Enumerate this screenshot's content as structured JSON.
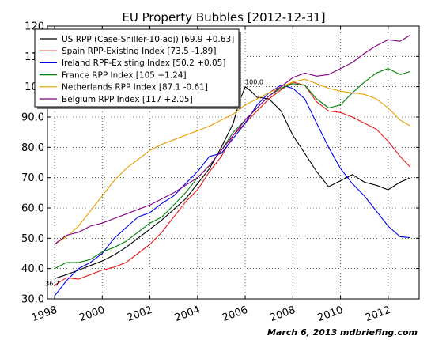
{
  "chart_data": {
    "type": "line",
    "title": "EU Property Bubbles  [2012-12-31]",
    "xlabel": "",
    "ylabel": "",
    "xlim": [
      1997.7,
      2013.3
    ],
    "ylim": [
      30,
      120
    ],
    "yticks": [
      30,
      40,
      50,
      60,
      70,
      80,
      90,
      100,
      110,
      120
    ],
    "ytick_labels": [
      "30.0",
      "40.0",
      "50.0",
      "60.0",
      "70.0",
      "80.0",
      "90.0",
      "100",
      "110",
      "120"
    ],
    "xticks": [
      1998,
      2000,
      2002,
      2004,
      2006,
      2008,
      2010,
      2012
    ],
    "xtick_labels": [
      "1998",
      "2000",
      "2002",
      "2004",
      "2006",
      "2008",
      "2010",
      "2012"
    ],
    "grid": true,
    "legend_position": "top-left",
    "annotations": [
      {
        "text": "100.0",
        "x": 2006.0,
        "y": 100.0
      },
      {
        "text": "36.7",
        "x": 1998.0,
        "y": 36.7
      }
    ],
    "footer": "March 6, 2013  mdbriefing.com",
    "series": [
      {
        "name": "US RPP (Case-Shiller-10-adj) [69.9 +0.63]",
        "color": "#000000",
        "points": [
          [
            1998.0,
            36.7
          ],
          [
            1998.5,
            38.0
          ],
          [
            1999.0,
            39.5
          ],
          [
            1999.5,
            41.0
          ],
          [
            2000.0,
            42.5
          ],
          [
            2000.5,
            44.5
          ],
          [
            2001.0,
            47.0
          ],
          [
            2001.5,
            50.0
          ],
          [
            2002.0,
            53.0
          ],
          [
            2002.5,
            56.0
          ],
          [
            2003.0,
            59.5
          ],
          [
            2003.5,
            63.0
          ],
          [
            2004.0,
            68.0
          ],
          [
            2004.5,
            73.0
          ],
          [
            2005.0,
            80.0
          ],
          [
            2005.5,
            88.0
          ],
          [
            2005.75,
            95.0
          ],
          [
            2006.0,
            100.0
          ],
          [
            2006.25,
            98.5
          ],
          [
            2006.5,
            96.5
          ],
          [
            2007.0,
            96.0
          ],
          [
            2007.5,
            92.0
          ],
          [
            2008.0,
            84.0
          ],
          [
            2008.5,
            78.0
          ],
          [
            2009.0,
            72.0
          ],
          [
            2009.5,
            67.0
          ],
          [
            2010.0,
            69.0
          ],
          [
            2010.5,
            71.0
          ],
          [
            2011.0,
            68.5
          ],
          [
            2011.5,
            67.5
          ],
          [
            2012.0,
            66.0
          ],
          [
            2012.5,
            68.5
          ],
          [
            2012.92,
            69.9
          ]
        ]
      },
      {
        "name": "Spain RPP-Existing Index [73.5 -1.89]",
        "color": "#e41a1c",
        "points": [
          [
            1998.0,
            34.5
          ],
          [
            1998.5,
            37.0
          ],
          [
            1999.0,
            36.5
          ],
          [
            1999.5,
            38.0
          ],
          [
            2000.0,
            39.5
          ],
          [
            2000.5,
            40.5
          ],
          [
            2001.0,
            42.0
          ],
          [
            2001.5,
            45.0
          ],
          [
            2002.0,
            48.0
          ],
          [
            2002.5,
            52.0
          ],
          [
            2003.0,
            57.0
          ],
          [
            2003.5,
            62.0
          ],
          [
            2004.0,
            66.0
          ],
          [
            2004.5,
            72.0
          ],
          [
            2005.0,
            77.0
          ],
          [
            2005.5,
            84.0
          ],
          [
            2006.0,
            88.0
          ],
          [
            2006.5,
            92.0
          ],
          [
            2007.0,
            96.0
          ],
          [
            2007.5,
            99.0
          ],
          [
            2008.0,
            101.5
          ],
          [
            2008.5,
            100.5
          ],
          [
            2009.0,
            95.0
          ],
          [
            2009.5,
            92.0
          ],
          [
            2010.0,
            91.5
          ],
          [
            2010.5,
            90.0
          ],
          [
            2011.0,
            88.0
          ],
          [
            2011.5,
            86.0
          ],
          [
            2012.0,
            82.0
          ],
          [
            2012.5,
            77.0
          ],
          [
            2012.92,
            73.5
          ]
        ]
      },
      {
        "name": "Ireland RPP-Existing Index [50.2 +0.05]",
        "color": "#0000ee",
        "points": [
          [
            1998.0,
            31.0
          ],
          [
            1998.5,
            36.0
          ],
          [
            1999.0,
            40.0
          ],
          [
            1999.5,
            42.0
          ],
          [
            2000.0,
            45.0
          ],
          [
            2000.5,
            50.0
          ],
          [
            2001.0,
            53.5
          ],
          [
            2001.5,
            57.0
          ],
          [
            2002.0,
            58.5
          ],
          [
            2002.5,
            61.5
          ],
          [
            2003.0,
            64.0
          ],
          [
            2003.5,
            68.0
          ],
          [
            2004.0,
            72.0
          ],
          [
            2004.5,
            77.0
          ],
          [
            2005.0,
            78.0
          ],
          [
            2005.5,
            83.0
          ],
          [
            2006.0,
            88.0
          ],
          [
            2006.5,
            94.0
          ],
          [
            2007.0,
            98.0
          ],
          [
            2007.5,
            100.5
          ],
          [
            2008.0,
            99.5
          ],
          [
            2008.5,
            96.0
          ],
          [
            2009.0,
            88.0
          ],
          [
            2009.5,
            80.0
          ],
          [
            2010.0,
            73.0
          ],
          [
            2010.5,
            68.0
          ],
          [
            2011.0,
            64.0
          ],
          [
            2011.5,
            59.0
          ],
          [
            2012.0,
            54.0
          ],
          [
            2012.5,
            50.5
          ],
          [
            2012.92,
            50.2
          ]
        ]
      },
      {
        "name": "France RPP Index [105 +1.24]",
        "color": "#008000",
        "points": [
          [
            1998.0,
            40.0
          ],
          [
            1998.5,
            42.0
          ],
          [
            1999.0,
            42.0
          ],
          [
            1999.5,
            43.0
          ],
          [
            2000.0,
            45.5
          ],
          [
            2000.5,
            47.0
          ],
          [
            2001.0,
            49.0
          ],
          [
            2001.5,
            52.0
          ],
          [
            2002.0,
            55.0
          ],
          [
            2002.5,
            57.0
          ],
          [
            2003.0,
            61.0
          ],
          [
            2003.5,
            65.0
          ],
          [
            2004.0,
            70.0
          ],
          [
            2004.5,
            74.0
          ],
          [
            2005.0,
            79.0
          ],
          [
            2005.5,
            85.0
          ],
          [
            2006.0,
            89.0
          ],
          [
            2006.5,
            93.0
          ],
          [
            2007.0,
            97.0
          ],
          [
            2007.5,
            99.5
          ],
          [
            2008.0,
            101.0
          ],
          [
            2008.5,
            100.5
          ],
          [
            2009.0,
            96.0
          ],
          [
            2009.5,
            93.0
          ],
          [
            2010.0,
            94.0
          ],
          [
            2010.5,
            98.0
          ],
          [
            2011.0,
            101.5
          ],
          [
            2011.5,
            104.5
          ],
          [
            2012.0,
            106.0
          ],
          [
            2012.5,
            104.0
          ],
          [
            2012.92,
            105.0
          ]
        ]
      },
      {
        "name": "Netherlands RPP Index [87.1 -0.61]",
        "color": "#e69f00",
        "points": [
          [
            1998.0,
            48.0
          ],
          [
            1998.5,
            50.5
          ],
          [
            1999.0,
            54.0
          ],
          [
            1999.5,
            59.0
          ],
          [
            2000.0,
            64.0
          ],
          [
            2000.5,
            69.0
          ],
          [
            2001.0,
            73.0
          ],
          [
            2001.5,
            76.0
          ],
          [
            2002.0,
            79.0
          ],
          [
            2002.5,
            81.0
          ],
          [
            2003.0,
            82.5
          ],
          [
            2003.5,
            84.0
          ],
          [
            2004.0,
            85.5
          ],
          [
            2004.5,
            87.0
          ],
          [
            2005.0,
            89.0
          ],
          [
            2005.5,
            91.0
          ],
          [
            2006.0,
            94.0
          ],
          [
            2006.5,
            96.0
          ],
          [
            2007.0,
            98.0
          ],
          [
            2007.5,
            100.0
          ],
          [
            2008.0,
            101.5
          ],
          [
            2008.5,
            102.5
          ],
          [
            2009.0,
            101.0
          ],
          [
            2009.5,
            99.5
          ],
          [
            2010.0,
            98.5
          ],
          [
            2010.5,
            98.0
          ],
          [
            2011.0,
            97.5
          ],
          [
            2011.5,
            96.0
          ],
          [
            2012.0,
            93.0
          ],
          [
            2012.5,
            89.0
          ],
          [
            2012.92,
            87.1
          ]
        ]
      },
      {
        "name": "Belgium RPP Index [117 +2.05]",
        "color": "#800080",
        "points": [
          [
            1998.0,
            48.0
          ],
          [
            1998.5,
            51.0
          ],
          [
            1999.0,
            52.0
          ],
          [
            1999.5,
            54.0
          ],
          [
            2000.0,
            55.0
          ],
          [
            2000.5,
            56.5
          ],
          [
            2001.0,
            58.0
          ],
          [
            2001.5,
            59.5
          ],
          [
            2002.0,
            61.0
          ],
          [
            2002.5,
            63.0
          ],
          [
            2003.0,
            65.0
          ],
          [
            2003.5,
            67.5
          ],
          [
            2004.0,
            70.0
          ],
          [
            2004.5,
            74.0
          ],
          [
            2005.0,
            79.0
          ],
          [
            2005.5,
            84.0
          ],
          [
            2006.0,
            89.0
          ],
          [
            2006.5,
            93.0
          ],
          [
            2007.0,
            97.0
          ],
          [
            2007.5,
            100.0
          ],
          [
            2008.0,
            103.0
          ],
          [
            2008.5,
            104.5
          ],
          [
            2009.0,
            103.5
          ],
          [
            2009.5,
            104.0
          ],
          [
            2010.0,
            106.0
          ],
          [
            2010.5,
            108.0
          ],
          [
            2011.0,
            111.0
          ],
          [
            2011.5,
            113.5
          ],
          [
            2012.0,
            115.5
          ],
          [
            2012.5,
            115.0
          ],
          [
            2012.92,
            117.0
          ]
        ]
      }
    ]
  }
}
